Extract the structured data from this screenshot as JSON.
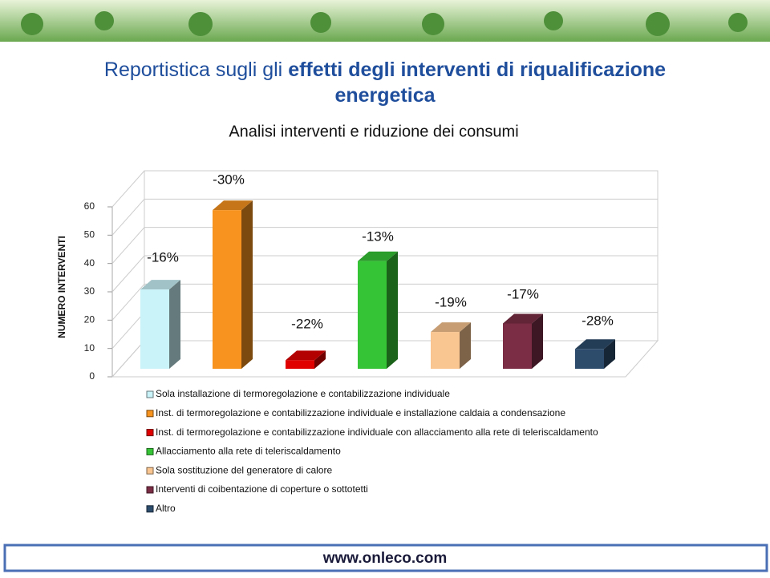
{
  "header": {
    "title_normal": "Reportistica sugli gli",
    "title_bold": "effetti degli interventi di riqualificazione energetica"
  },
  "chart_data": {
    "type": "bar",
    "title": "Analisi interventi e riduzione dei consumi",
    "y_label": "NUMERO INTERVENTI",
    "ylim": [
      0,
      60
    ],
    "yticks": [
      0,
      10,
      20,
      30,
      40,
      50,
      60
    ],
    "grid": true,
    "series": [
      {
        "name": "Sola installazione di termoregolazione e contabilizzazione individuale",
        "color": "#c9f3f8",
        "values": [
          28
        ]
      },
      {
        "name": "Inst. di termoregolazione e contabilizzazione individuale e installazione caldaia a condensazione",
        "color": "#f7931e",
        "values": [
          56
        ]
      },
      {
        "name": "Inst. di termoregolazione e contabilizzazione individuale con allacciamento alla rete di teleriscaldamento",
        "color": "#e00000",
        "values": [
          3
        ]
      },
      {
        "name": "Allacciamento alla rete di teleriscaldamento",
        "color": "#35c435",
        "values": [
          38
        ]
      },
      {
        "name": "Sola sostituzione del generatore di calore",
        "color": "#f9c590",
        "values": [
          13
        ]
      },
      {
        "name": "Interventi di coibentazione di coperture o sottotetti",
        "color": "#7a2d45",
        "values": [
          16
        ]
      },
      {
        "name": "Altro",
        "color": "#2d4c6c",
        "values": [
          7
        ]
      }
    ],
    "reduction_labels": [
      "-16%",
      "-30%",
      "-22%",
      "-13%",
      "-19%",
      "-17%",
      "-28%"
    ]
  },
  "footer": {
    "url": "www.onleco.com"
  }
}
